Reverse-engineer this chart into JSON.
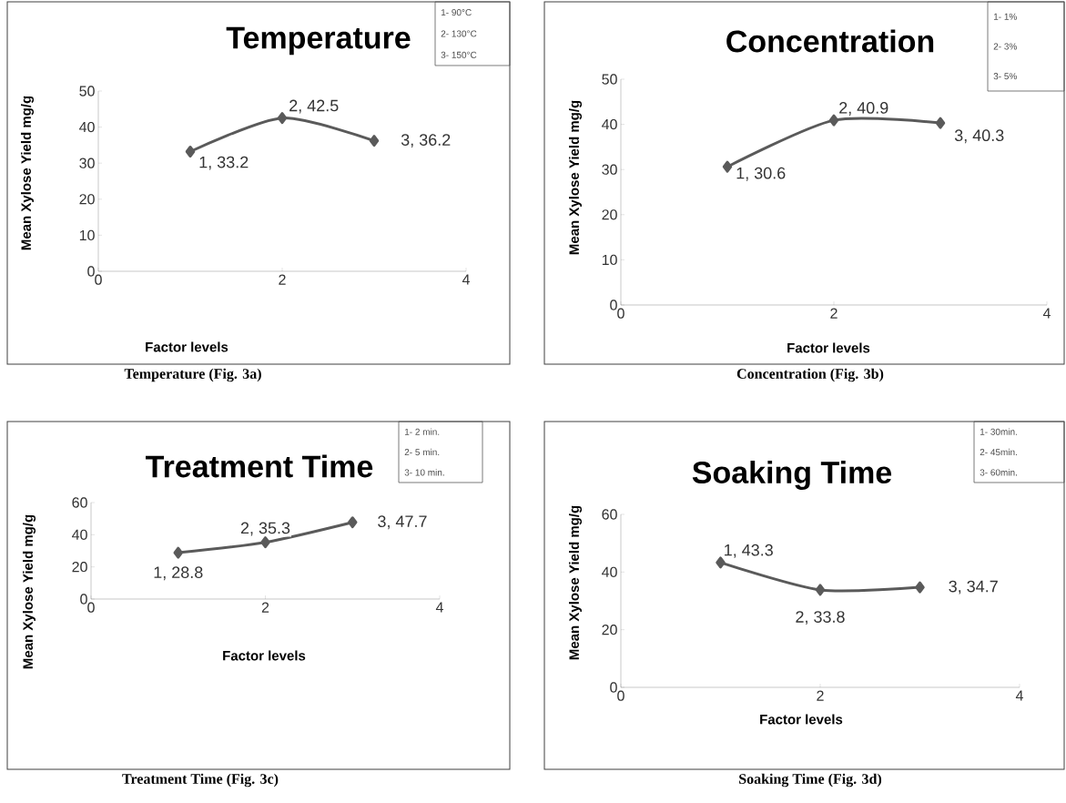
{
  "chart_data": [
    {
      "type": "line",
      "title": "Temperature",
      "xlabel": "Factor levels",
      "ylabel": "Mean Xylose Yield mg/g",
      "x": [
        1,
        2,
        3
      ],
      "values": [
        33.2,
        42.5,
        36.2
      ],
      "value_labels": [
        "1, 33.2",
        "2, 42.5",
        "3, 36.2"
      ],
      "color": "#5a5a5a",
      "marker": "diamond",
      "line_style": "solid",
      "xlim": [
        0,
        4
      ],
      "xticks": [
        0,
        2,
        4
      ],
      "ylim": [
        0,
        50
      ],
      "yticks": [
        0,
        10,
        20,
        30,
        40,
        50
      ],
      "annotations": [
        "1- 90°C",
        "2- 130°C",
        "3- 150°C",
        "Temperature (Fig. 3a)"
      ]
    },
    {
      "type": "line",
      "title": "Concentration",
      "xlabel": "Factor levels",
      "ylabel": "Mean Xylose Yield mg/g",
      "x": [
        1,
        2,
        3
      ],
      "values": [
        30.6,
        40.9,
        40.3
      ],
      "value_labels": [
        "1, 30.6",
        "2, 40.9",
        "3, 40.3"
      ],
      "color": "#5a5a5a",
      "marker": "diamond",
      "line_style": "solid",
      "xlim": [
        0,
        4
      ],
      "xticks": [
        0,
        2,
        4
      ],
      "ylim": [
        0,
        50
      ],
      "yticks": [
        0,
        10,
        20,
        30,
        40,
        50
      ],
      "annotations": [
        "1- 1%",
        "2- 3%",
        "3- 5%",
        "Concentration (Fig. 3b)"
      ]
    },
    {
      "type": "line",
      "title": "Treatment Time",
      "xlabel": "Factor levels",
      "ylabel": "Mean Xylose Yield mg/g",
      "x": [
        1,
        2,
        3
      ],
      "values": [
        28.8,
        35.3,
        47.7
      ],
      "value_labels": [
        "1, 28.8",
        "2, 35.3",
        "3, 47.7"
      ],
      "color": "#5a5a5a",
      "marker": "diamond",
      "line_style": "solid",
      "xlim": [
        0,
        4
      ],
      "xticks": [
        0,
        2,
        4
      ],
      "ylim": [
        0,
        60
      ],
      "yticks": [
        0,
        20,
        40,
        60
      ],
      "annotations": [
        "1- 2 min.",
        "2- 5 min.",
        "3- 10 min.",
        "Treatment Time (Fig. 3c)"
      ]
    },
    {
      "type": "line",
      "title": "Soaking Time",
      "xlabel": "Factor levels",
      "ylabel": "Mean Xylose Yield mg/g",
      "x": [
        1,
        2,
        3
      ],
      "values": [
        43.3,
        33.8,
        34.7
      ],
      "value_labels": [
        "1, 43.3",
        "2, 33.8",
        "3, 34.7"
      ],
      "color": "#5a5a5a",
      "marker": "diamond",
      "line_style": "solid",
      "xlim": [
        0,
        4
      ],
      "xticks": [
        0,
        2,
        4
      ],
      "ylim": [
        0,
        60
      ],
      "yticks": [
        0,
        20,
        40,
        60
      ],
      "annotations": [
        "1- 30min.",
        "2- 45min.",
        "3- 60min.",
        "Soaking Time (Fig. 3d)"
      ]
    }
  ]
}
